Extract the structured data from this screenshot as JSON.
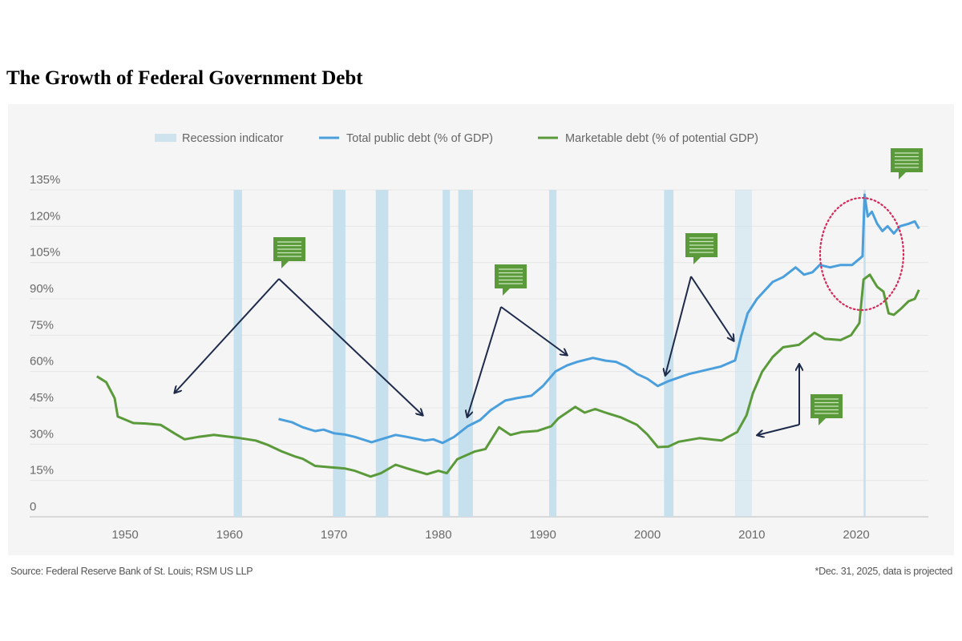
{
  "chart_data": {
    "type": "line",
    "title": "The Growth of Federal Government Debt",
    "xlabel": "",
    "ylabel": "",
    "xlim": [
      1947,
      2026
    ],
    "ylim": [
      0,
      135
    ],
    "x_ticks": [
      1950,
      1960,
      1970,
      1980,
      1990,
      2000,
      2010,
      2020
    ],
    "y_ticks": [
      0,
      15,
      30,
      45,
      60,
      75,
      90,
      105,
      120,
      135
    ],
    "y_tick_labels": [
      "0",
      "15%",
      "30%",
      "45%",
      "60%",
      "75%",
      "90%",
      "105%",
      "120%",
      "135%"
    ],
    "grid": true,
    "legend_position": "top-center",
    "legend": [
      {
        "label": "Recession indicator",
        "color": "#cfe3ef"
      },
      {
        "label": "Total public debt (% of GDP)",
        "color": "#4a9fdc"
      },
      {
        "label": "Marketable debt (% of potential GDP)",
        "color": "#5a9a3a"
      }
    ],
    "recessions": [
      [
        1960.4,
        1961.2
      ],
      [
        1969.9,
        1971.1
      ],
      [
        1974.0,
        1975.2
      ],
      [
        1980.4,
        1981.1
      ],
      [
        1981.9,
        1983.3
      ],
      [
        1990.6,
        1991.3
      ],
      [
        2001.6,
        2002.5
      ],
      [
        2008.4,
        2010.0
      ],
      [
        2020.7,
        2020.9
      ]
    ],
    "series": [
      {
        "name": "Total public debt (% of GDP)",
        "color": "#4a9fdc",
        "x": [
          1964.7,
          1966,
          1967,
          1968.2,
          1969,
          1970,
          1971,
          1972,
          1973.6,
          1974.5,
          1975.9,
          1977,
          1978.7,
          1979.5,
          1980.4,
          1981.5,
          1982.8,
          1984,
          1985,
          1986.4,
          1987.5,
          1988.9,
          1990,
          1991.2,
          1992.3,
          1993.3,
          1994.8,
          1996,
          1997,
          1998,
          1999,
          2000,
          2001,
          2002,
          2003,
          2004,
          2005,
          2006,
          2007,
          2008.4,
          2009,
          2009.6,
          2010.5,
          2012,
          2013,
          2014.2,
          2015,
          2015.8,
          2016.5,
          2017.5,
          2018.5,
          2019.6,
          2020.6,
          2020.8,
          2021.1,
          2021.5,
          2022,
          2022.5,
          2023,
          2023.6,
          2024.2,
          2025,
          2025.6,
          2026
        ],
        "values": [
          40.4,
          39,
          37,
          35.4,
          36,
          34.5,
          34,
          33,
          30.8,
          32,
          33.8,
          33,
          31.5,
          32,
          30.5,
          33,
          37.4,
          40,
          44,
          48,
          49,
          50,
          54,
          60,
          62.5,
          64,
          65.6,
          64.5,
          64,
          62,
          59,
          57,
          54,
          56,
          57.5,
          59,
          60,
          61,
          62,
          64.6,
          75,
          84,
          90,
          97,
          99,
          103,
          100,
          101,
          104,
          103,
          104,
          104,
          107.6,
          133,
          124,
          126,
          121,
          118,
          120,
          117,
          120,
          121,
          122,
          119
        ]
      },
      {
        "name": "Marketable debt (% of potential GDP)",
        "color": "#5a9a3a",
        "x": [
          1947.3,
          1948.2,
          1949,
          1949.3,
          1950.8,
          1952,
          1953.4,
          1954.9,
          1955.7,
          1957,
          1958.5,
          1961,
          1962.5,
          1963.6,
          1965,
          1966.2,
          1967,
          1968.2,
          1969.5,
          1971,
          1972,
          1973.5,
          1974.5,
          1975.9,
          1977,
          1978.9,
          1980,
          1980.8,
          1981.8,
          1983.5,
          1984.5,
          1985.8,
          1986.9,
          1988,
          1989.5,
          1990.8,
          1991.5,
          1993.1,
          1994,
          1995,
          1996,
          1997.5,
          1999,
          2000,
          2001,
          2002,
          2003,
          2005,
          2007.1,
          2008.6,
          2009.5,
          2010.1,
          2011,
          2012,
          2013,
          2014.5,
          2016,
          2017,
          2018.5,
          2019.5,
          2020.3,
          2020.7,
          2021.3,
          2022,
          2022.6,
          2023.1,
          2023.6,
          2024.3,
          2025,
          2025.6,
          2026
        ],
        "values": [
          58,
          55.6,
          49,
          41.4,
          38.7,
          38.5,
          38,
          34,
          32,
          33,
          33.8,
          32.5,
          31.5,
          29.8,
          27,
          25,
          24,
          21,
          20.5,
          20,
          19,
          16.6,
          18,
          21.5,
          20,
          17.6,
          19,
          18,
          23.8,
          27,
          28,
          37,
          33.8,
          35,
          35.5,
          37.4,
          40.7,
          45.4,
          43,
          44.5,
          43,
          41,
          38,
          34,
          28.8,
          29,
          31,
          32.5,
          31.5,
          35,
          42,
          51,
          60,
          66,
          70,
          71,
          76,
          73.5,
          73,
          75,
          80,
          98,
          100,
          95,
          93,
          84,
          83.4,
          86,
          89,
          90,
          93.7
        ]
      }
    ],
    "annotations": [
      {
        "type": "callout-icon"
      },
      {
        "type": "callout-icon"
      },
      {
        "type": "callout-icon"
      },
      {
        "type": "callout-icon"
      },
      {
        "type": "callout-icon"
      }
    ]
  },
  "footer": {
    "source": "Source: Federal Reserve Bank of St. Louis; RSM US LLP",
    "note": "*Dec. 31, 2025, data is projected"
  },
  "colors": {
    "panel": "#f5f5f5",
    "grid": "#e6e6e6",
    "arrow": "#1e2a4a",
    "callout": "#5a9a3a",
    "highlight": "#d6285a"
  }
}
